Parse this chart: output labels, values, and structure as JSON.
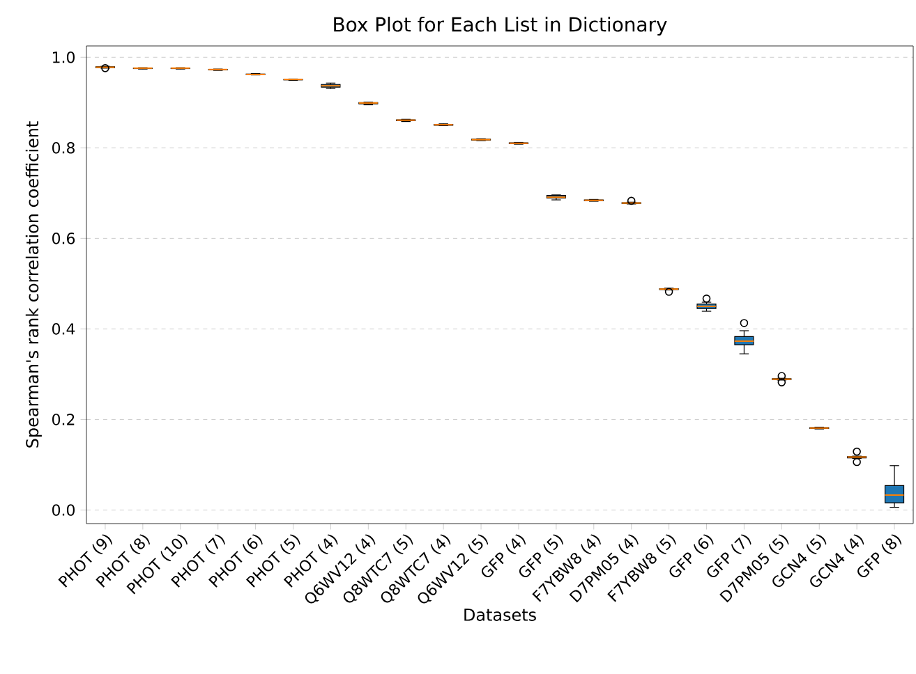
{
  "chart_data": {
    "type": "box",
    "title": "Box Plot for Each List in Dictionary",
    "xlabel": "Datasets",
    "ylabel": "Spearman's rank correlation coefficient",
    "categories": [
      "PHOT (9)",
      "PHOT (8)",
      "PHOT (10)",
      "PHOT (7)",
      "PHOT (6)",
      "PHOT (5)",
      "PHOT (4)",
      "Q6WV12 (4)",
      "Q8WTC7 (5)",
      "Q8WTC7 (4)",
      "Q6WV12 (5)",
      "GFP (4)",
      "GFP (5)",
      "F7YBW8 (4)",
      "D7PM05 (4)",
      "F7YBW8 (5)",
      "GFP (6)",
      "GFP (7)",
      "D7PM05 (5)",
      "GCN4 (5)",
      "GCN4 (4)",
      "GFP (8)"
    ],
    "series": [
      {
        "color": "#1f77b4",
        "boxes": [
          {
            "low": 0.976,
            "q1": 0.977,
            "median": 0.978,
            "q3": 0.979,
            "high": 0.98,
            "outliers": [
              0.976
            ]
          },
          {
            "low": 0.974,
            "q1": 0.975,
            "median": 0.976,
            "q3": 0.976,
            "high": 0.977
          },
          {
            "low": 0.974,
            "q1": 0.975,
            "median": 0.976,
            "q3": 0.976,
            "high": 0.977
          },
          {
            "low": 0.971,
            "q1": 0.972,
            "median": 0.973,
            "q3": 0.973,
            "high": 0.974
          },
          {
            "low": 0.961,
            "q1": 0.962,
            "median": 0.962,
            "q3": 0.963,
            "high": 0.964
          },
          {
            "low": 0.949,
            "q1": 0.95,
            "median": 0.951,
            "q3": 0.951,
            "high": 0.952
          },
          {
            "low": 0.931,
            "q1": 0.934,
            "median": 0.937,
            "q3": 0.94,
            "high": 0.943
          },
          {
            "low": 0.895,
            "q1": 0.897,
            "median": 0.899,
            "q3": 0.9,
            "high": 0.901
          },
          {
            "low": 0.858,
            "q1": 0.86,
            "median": 0.861,
            "q3": 0.862,
            "high": 0.863
          },
          {
            "low": 0.849,
            "q1": 0.85,
            "median": 0.851,
            "q3": 0.852,
            "high": 0.853
          },
          {
            "low": 0.816,
            "q1": 0.817,
            "median": 0.818,
            "q3": 0.819,
            "high": 0.82
          },
          {
            "low": 0.808,
            "q1": 0.809,
            "median": 0.81,
            "q3": 0.811,
            "high": 0.812
          },
          {
            "low": 0.685,
            "q1": 0.689,
            "median": 0.691,
            "q3": 0.695,
            "high": 0.696
          },
          {
            "low": 0.682,
            "q1": 0.683,
            "median": 0.684,
            "q3": 0.685,
            "high": 0.686
          },
          {
            "low": 0.676,
            "q1": 0.677,
            "median": 0.678,
            "q3": 0.679,
            "high": 0.68,
            "outliers": [
              0.683
            ]
          },
          {
            "low": 0.486,
            "q1": 0.487,
            "median": 0.488,
            "q3": 0.489,
            "high": 0.49,
            "outliers": [
              0.482
            ]
          },
          {
            "low": 0.439,
            "q1": 0.445,
            "median": 0.45,
            "q3": 0.455,
            "high": 0.459,
            "outliers": [
              0.467
            ]
          },
          {
            "low": 0.345,
            "q1": 0.365,
            "median": 0.373,
            "q3": 0.383,
            "high": 0.396,
            "outliers": [
              0.413
            ]
          },
          {
            "low": 0.287,
            "q1": 0.288,
            "median": 0.289,
            "q3": 0.29,
            "high": 0.291,
            "outliers": [
              0.296,
              0.282
            ]
          },
          {
            "low": 0.179,
            "q1": 0.18,
            "median": 0.181,
            "q3": 0.182,
            "high": 0.183
          },
          {
            "low": 0.114,
            "q1": 0.115,
            "median": 0.117,
            "q3": 0.118,
            "high": 0.119,
            "outliers": [
              0.129,
              0.106
            ]
          },
          {
            "low": 0.006,
            "q1": 0.016,
            "median": 0.033,
            "q3": 0.054,
            "high": 0.098
          }
        ]
      }
    ],
    "ylim": [
      -0.03,
      1.025
    ],
    "yticks": [
      {
        "value": 0,
        "label": "0.0"
      },
      {
        "value": 0.2,
        "label": "0.2"
      },
      {
        "value": 0.4,
        "label": "0.4"
      },
      {
        "value": 0.6,
        "label": "0.6"
      },
      {
        "value": 0.8,
        "label": "0.8"
      },
      {
        "value": 1,
        "label": "1.0"
      }
    ],
    "grid": "y"
  }
}
